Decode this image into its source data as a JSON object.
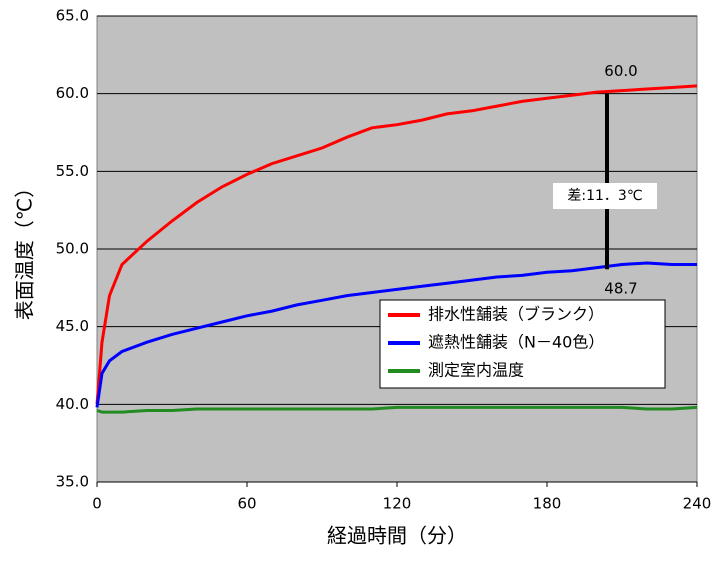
{
  "chart_data": {
    "type": "line",
    "y_label": "表面温度（℃）",
    "x_label": "経過時間（分）",
    "x": [
      0,
      2,
      5,
      10,
      20,
      30,
      40,
      50,
      60,
      70,
      80,
      90,
      100,
      110,
      120,
      130,
      140,
      150,
      160,
      170,
      180,
      190,
      200,
      210,
      220,
      230,
      240
    ],
    "series": [
      {
        "name": "排水性舗装（ブランク）",
        "color": "#ff0000",
        "values": [
          40.0,
          44.0,
          47.0,
          49.0,
          50.5,
          51.8,
          53.0,
          54.0,
          54.8,
          55.5,
          56.0,
          56.5,
          57.2,
          57.8,
          58.0,
          58.3,
          58.7,
          58.9,
          59.2,
          59.5,
          59.7,
          59.9,
          60.1,
          60.2,
          60.3,
          60.4,
          60.5
        ]
      },
      {
        "name": "遮熱性舗装（N－40色）",
        "color": "#0000ff",
        "values": [
          39.8,
          42.0,
          42.8,
          43.4,
          44.0,
          44.5,
          44.9,
          45.3,
          45.7,
          46.0,
          46.4,
          46.7,
          47.0,
          47.2,
          47.4,
          47.6,
          47.8,
          48.0,
          48.2,
          48.3,
          48.5,
          48.6,
          48.8,
          49.0,
          49.1,
          49.0,
          49.0
        ]
      },
      {
        "name": "測定室内温度",
        "color": "#228b22",
        "values": [
          39.6,
          39.5,
          39.5,
          39.5,
          39.6,
          39.6,
          39.7,
          39.7,
          39.7,
          39.7,
          39.7,
          39.7,
          39.7,
          39.7,
          39.8,
          39.8,
          39.8,
          39.8,
          39.8,
          39.8,
          39.8,
          39.8,
          39.8,
          39.8,
          39.7,
          39.7,
          39.8
        ]
      }
    ],
    "xlim": [
      0,
      240
    ],
    "xticks": [
      0,
      60,
      120,
      180,
      240
    ],
    "ylim": [
      35,
      65
    ],
    "yticks": [
      {
        "value": 35,
        "label": "35.0"
      },
      {
        "value": 40,
        "label": "40.0"
      },
      {
        "value": 45,
        "label": "45.0"
      },
      {
        "value": 50,
        "label": "50.0"
      },
      {
        "value": 55,
        "label": "55.0"
      },
      {
        "value": 60,
        "label": "60.0"
      },
      {
        "value": 65,
        "label": "65.0"
      }
    ],
    "grid": true,
    "legend": "lower right",
    "difference": {
      "x": 204,
      "upper": {
        "value": 60.0,
        "label": "60.0"
      },
      "lower": {
        "value": 48.7,
        "label": "48.7"
      },
      "label": "差:11．3℃"
    }
  }
}
